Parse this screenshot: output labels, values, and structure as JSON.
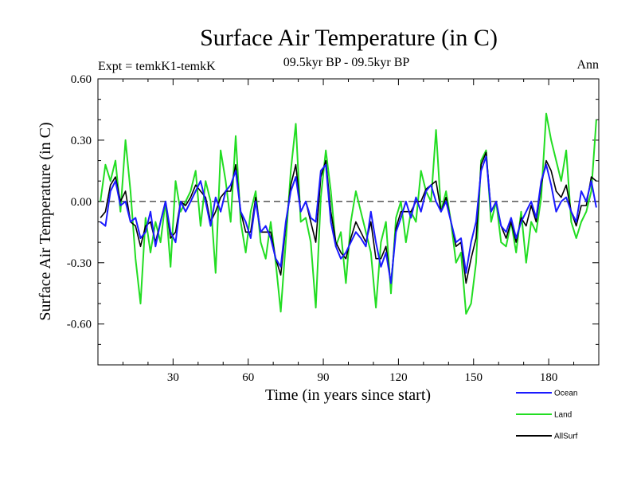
{
  "chart_data": {
    "type": "line",
    "title": "Surface Air Temperature (in C)",
    "left_label": "Expt = temkK1-temkK",
    "center_label": "09.5kyr BP - 09.5kyr BP",
    "right_label": "Ann",
    "xlabel": "Time (in years since start)",
    "ylabel": "Surface Air Temperature (in C)",
    "xlim": [
      0,
      200
    ],
    "ylim": [
      -0.8,
      0.6
    ],
    "xticks": [
      30,
      60,
      90,
      120,
      150,
      180
    ],
    "yticks": [
      0.6,
      0.3,
      0.0,
      -0.3,
      -0.6
    ],
    "ytick_labels": [
      "0.60",
      "0.30",
      "0.00",
      "-0.30",
      "-0.60"
    ],
    "xtick_labels": [
      "30",
      "60",
      "90",
      "120",
      "150",
      "180"
    ],
    "reference_line": 0.0,
    "x": [
      1,
      3,
      5,
      7,
      9,
      11,
      13,
      15,
      17,
      19,
      21,
      23,
      25,
      27,
      29,
      31,
      33,
      35,
      37,
      39,
      41,
      43,
      45,
      47,
      49,
      51,
      53,
      55,
      57,
      59,
      61,
      63,
      65,
      67,
      69,
      71,
      73,
      75,
      77,
      79,
      81,
      83,
      85,
      87,
      89,
      91,
      93,
      95,
      97,
      99,
      101,
      103,
      105,
      107,
      109,
      111,
      113,
      115,
      117,
      119,
      121,
      123,
      125,
      127,
      129,
      131,
      133,
      135,
      137,
      139,
      141,
      143,
      145,
      147,
      149,
      151,
      153,
      155,
      157,
      159,
      161,
      163,
      165,
      167,
      169,
      171,
      173,
      175,
      177,
      179,
      181,
      183,
      185,
      187,
      189,
      191,
      193,
      195,
      197,
      199
    ],
    "series": [
      {
        "name": "Ocean",
        "color": "#1a1aff",
        "values": [
          -0.1,
          -0.12,
          0.05,
          0.1,
          -0.02,
          0.0,
          -0.1,
          -0.08,
          -0.18,
          -0.15,
          -0.05,
          -0.22,
          -0.1,
          0.0,
          -0.15,
          -0.2,
          0.0,
          -0.05,
          0.0,
          0.05,
          0.1,
          0.0,
          -0.12,
          0.02,
          -0.05,
          0.05,
          0.08,
          0.15,
          -0.05,
          -0.1,
          -0.18,
          0.0,
          -0.15,
          -0.12,
          -0.18,
          -0.28,
          -0.32,
          -0.1,
          0.05,
          0.12,
          -0.05,
          0.0,
          -0.08,
          -0.1,
          0.15,
          0.18,
          -0.1,
          -0.22,
          -0.28,
          -0.25,
          -0.2,
          -0.15,
          -0.18,
          -0.22,
          -0.05,
          -0.2,
          -0.32,
          -0.25,
          -0.4,
          -0.15,
          -0.08,
          0.0,
          -0.08,
          0.02,
          -0.05,
          0.05,
          0.08,
          0.0,
          -0.05,
          0.0,
          -0.1,
          -0.2,
          -0.18,
          -0.35,
          -0.2,
          -0.1,
          0.15,
          0.22,
          -0.05,
          0.0,
          -0.12,
          -0.15,
          -0.08,
          -0.18,
          -0.1,
          -0.05,
          0.0,
          -0.08,
          0.1,
          0.18,
          0.08,
          -0.05,
          0.0,
          0.02,
          -0.05,
          -0.1,
          0.05,
          0.0,
          0.1,
          -0.03
        ]
      },
      {
        "name": "Land",
        "color": "#22dd22",
        "values": [
          0.0,
          0.18,
          0.1,
          0.2,
          -0.05,
          0.3,
          0.05,
          -0.28,
          -0.5,
          -0.08,
          -0.25,
          -0.1,
          -0.2,
          0.0,
          -0.32,
          0.1,
          -0.05,
          0.0,
          0.05,
          0.15,
          -0.12,
          0.1,
          0.0,
          -0.35,
          0.25,
          0.1,
          -0.1,
          0.32,
          -0.1,
          -0.25,
          -0.05,
          0.05,
          -0.2,
          -0.28,
          -0.1,
          -0.3,
          -0.54,
          -0.2,
          0.15,
          0.38,
          -0.1,
          -0.08,
          -0.2,
          -0.52,
          0.02,
          0.25,
          0.05,
          -0.22,
          -0.15,
          -0.4,
          -0.1,
          0.05,
          -0.05,
          -0.15,
          -0.25,
          -0.52,
          -0.2,
          -0.1,
          -0.45,
          -0.08,
          0.0,
          -0.2,
          -0.05,
          -0.1,
          0.15,
          0.05,
          0.0,
          0.35,
          -0.05,
          0.05,
          -0.1,
          -0.3,
          -0.25,
          -0.55,
          -0.5,
          -0.3,
          0.2,
          0.25,
          -0.1,
          0.0,
          -0.2,
          -0.22,
          -0.1,
          -0.25,
          -0.05,
          -0.3,
          -0.1,
          -0.15,
          0.02,
          0.43,
          0.3,
          0.2,
          0.1,
          0.25,
          -0.1,
          -0.18,
          -0.1,
          -0.05,
          0.05,
          0.4
        ]
      },
      {
        "name": "AllSurf",
        "color": "#000000",
        "values": [
          -0.08,
          -0.05,
          0.08,
          0.12,
          0.0,
          0.05,
          -0.1,
          -0.12,
          -0.22,
          -0.12,
          -0.1,
          -0.2,
          -0.1,
          0.0,
          -0.18,
          -0.15,
          0.0,
          -0.02,
          0.02,
          0.08,
          0.05,
          0.02,
          -0.1,
          -0.05,
          0.02,
          0.05,
          0.05,
          0.18,
          -0.05,
          -0.15,
          -0.15,
          0.02,
          -0.15,
          -0.15,
          -0.15,
          -0.28,
          -0.36,
          -0.12,
          0.08,
          0.18,
          -0.05,
          0.0,
          -0.1,
          -0.2,
          0.12,
          0.2,
          -0.05,
          -0.2,
          -0.25,
          -0.28,
          -0.18,
          -0.1,
          -0.15,
          -0.2,
          -0.1,
          -0.28,
          -0.28,
          -0.22,
          -0.4,
          -0.13,
          -0.05,
          -0.05,
          -0.05,
          0.0,
          0.0,
          0.06,
          0.08,
          0.1,
          -0.05,
          0.02,
          -0.1,
          -0.22,
          -0.2,
          -0.4,
          -0.28,
          -0.18,
          0.18,
          0.24,
          -0.05,
          0.0,
          -0.12,
          -0.18,
          -0.1,
          -0.2,
          -0.08,
          -0.12,
          -0.02,
          -0.1,
          0.08,
          0.2,
          0.15,
          0.05,
          0.02,
          0.08,
          -0.05,
          -0.12,
          -0.02,
          -0.02,
          0.12,
          0.1
        ]
      }
    ]
  }
}
